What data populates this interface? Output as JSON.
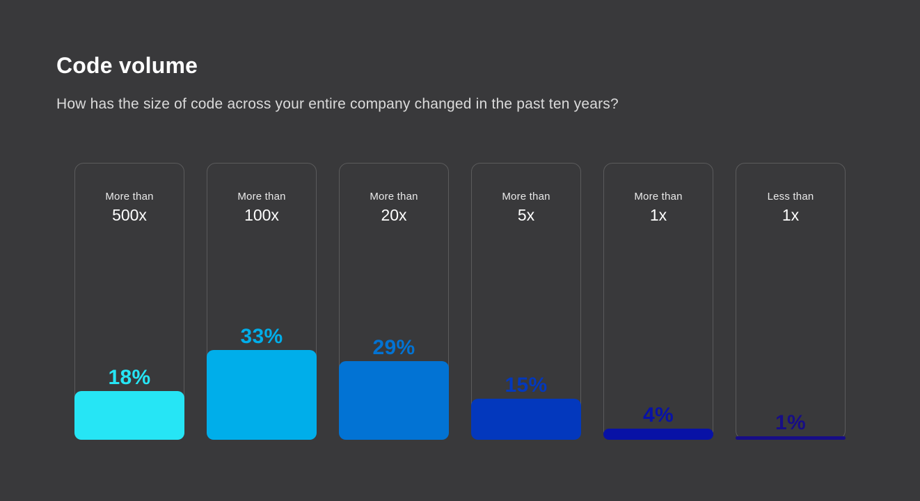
{
  "page": {
    "background_color": "#39393B"
  },
  "header": {
    "title": "Code volume",
    "subtitle": "How has the size of code across your entire company changed in the past ten years?"
  },
  "chart_data": {
    "type": "bar",
    "orientation": "vertical",
    "title": "Code volume",
    "subtitle": "How has the size of code across your entire company changed in the past ten years?",
    "unit": "%",
    "ylim": [
      0,
      100
    ],
    "grid": false,
    "legend": false,
    "categories": [
      "More than 500x",
      "More than 100x",
      "More than 20x",
      "More than 5x",
      "More than 1x",
      "Less than 1x"
    ],
    "values": [
      18,
      33,
      29,
      15,
      4,
      1
    ],
    "bars": [
      {
        "label_line1": "More than",
        "label_line2": "500x",
        "value": 18,
        "value_label": "18%",
        "color": "#26E5F5"
      },
      {
        "label_line1": "More than",
        "label_line2": "100x",
        "value": 33,
        "value_label": "33%",
        "color": "#00AEEA"
      },
      {
        "label_line1": "More than",
        "label_line2": "20x",
        "value": 29,
        "value_label": "29%",
        "color": "#0273D4"
      },
      {
        "label_line1": "More than",
        "label_line2": "5x",
        "value": 15,
        "value_label": "15%",
        "color": "#0338BD"
      },
      {
        "label_line1": "More than",
        "label_line2": "1x",
        "value": 4,
        "value_label": "4%",
        "color": "#0812A6"
      },
      {
        "label_line1": "Less than",
        "label_line2": "1x",
        "value": 1,
        "value_label": "1%",
        "color": "#170D86"
      }
    ]
  }
}
